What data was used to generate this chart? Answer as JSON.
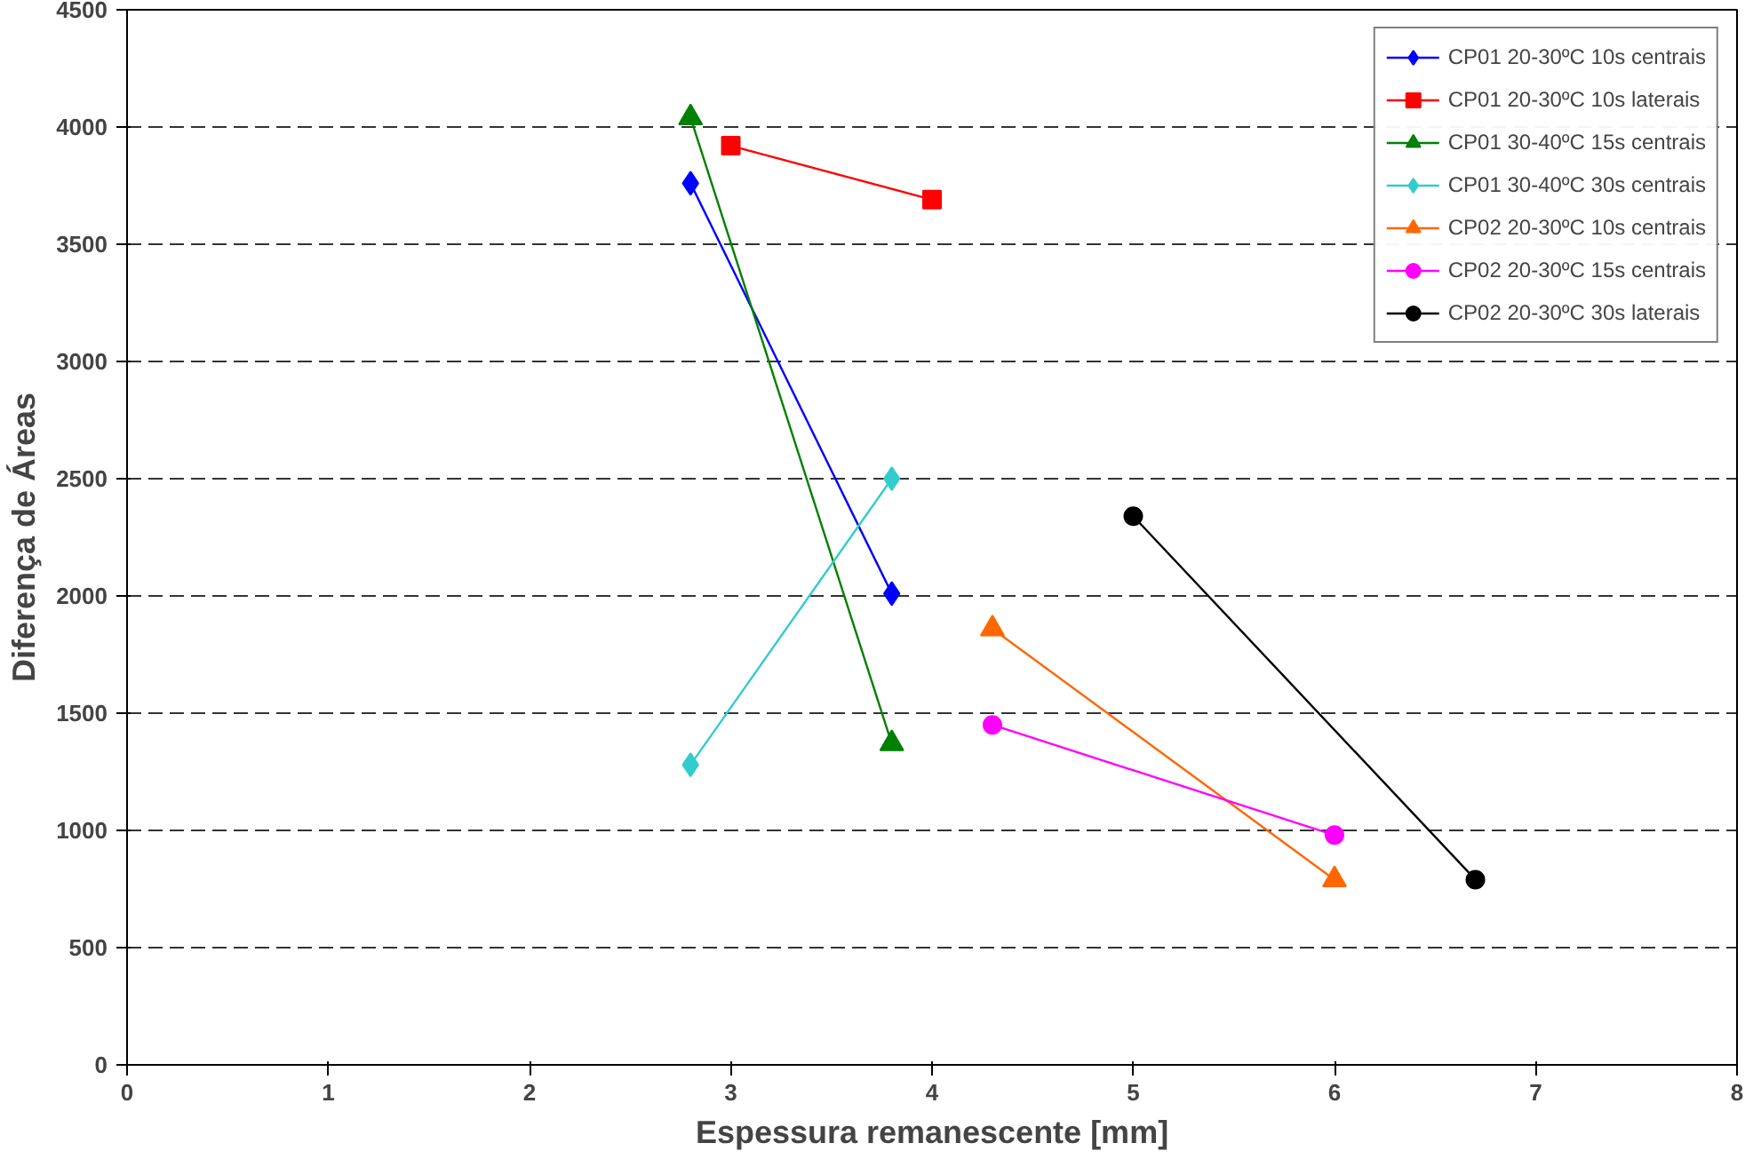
{
  "chart_data": {
    "type": "line",
    "xlabel": "Espessura remanescente [mm]",
    "ylabel": "Diferença de Áreas",
    "xlim": [
      0,
      8
    ],
    "xticks": [
      0,
      1,
      2,
      3,
      4,
      5,
      6,
      7,
      8
    ],
    "ylim": [
      0,
      4500
    ],
    "yticks": [
      0,
      500,
      1000,
      1500,
      2000,
      2500,
      3000,
      3500,
      4000,
      4500
    ],
    "grid": "y",
    "legend": "top right",
    "series": [
      {
        "name": "CP01 20-30ºC 10s centrais",
        "color": "#0000ff",
        "marker": "diamond",
        "x": [
          2.8,
          3.8
        ],
        "values": [
          3760,
          2010
        ]
      },
      {
        "name": "CP01 20-30ºC 10s laterais",
        "color": "#ff0000",
        "marker": "square",
        "x": [
          3,
          4
        ],
        "values": [
          3920,
          3690
        ]
      },
      {
        "name": "CP01 30-40ºC 15s centrais",
        "color": "#008000",
        "marker": "triangle",
        "x": [
          2.8,
          3.8
        ],
        "values": [
          4040,
          1370
        ]
      },
      {
        "name": "CP01 30-40ºC 30s centrais",
        "color": "#33cccc",
        "marker": "diamond",
        "x": [
          2.8,
          3.8
        ],
        "values": [
          1280,
          2500
        ]
      },
      {
        "name": "CP02 20-30ºC 10s centrais",
        "color": "#ff6600",
        "marker": "triangle",
        "x": [
          4.3,
          6
        ],
        "values": [
          1860,
          790
        ]
      },
      {
        "name": "CP02 20-30ºC 15s centrais",
        "color": "#ff00ff",
        "marker": "circle",
        "x": [
          4.3,
          6
        ],
        "values": [
          1450,
          980
        ]
      },
      {
        "name": "CP02 20-30ºC 30s laterais",
        "color": "#000000",
        "marker": "circle",
        "x": [
          5,
          6.7
        ],
        "values": [
          2340,
          790
        ]
      }
    ]
  }
}
